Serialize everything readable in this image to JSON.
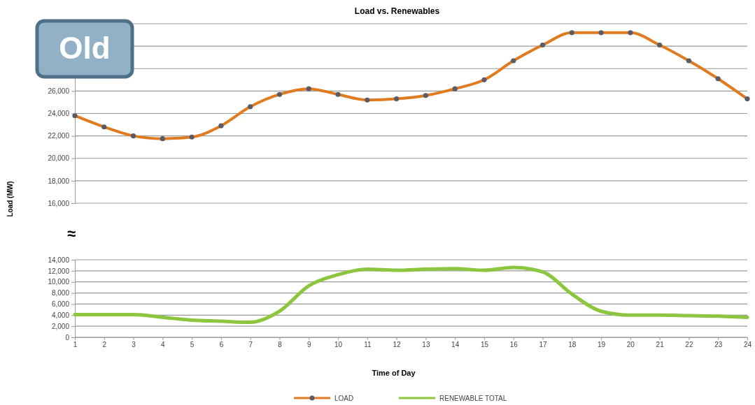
{
  "chart_data": [
    {
      "type": "line",
      "title": "Load vs. Renewables",
      "ylabel": "Load (MW)",
      "annotations": [
        "Old"
      ],
      "x": [
        1,
        2,
        3,
        4,
        5,
        6,
        7,
        8,
        9,
        10,
        11,
        12,
        13,
        14,
        15,
        16,
        17,
        18,
        19,
        20,
        21,
        22,
        23,
        24
      ],
      "xlim": [
        1,
        24
      ],
      "ylim": [
        16000,
        32000
      ],
      "yticks": [
        {
          "value": 16000,
          "label": "16,000"
        },
        {
          "value": 18000,
          "label": "18,000"
        },
        {
          "value": 20000,
          "label": "20,000"
        },
        {
          "value": 22000,
          "label": "22,000"
        },
        {
          "value": 24000,
          "label": "24,000"
        },
        {
          "value": 26000,
          "label": "26,000"
        },
        {
          "value": 28000,
          "label": null
        },
        {
          "value": 30000,
          "label": null
        },
        {
          "value": 32000,
          "label": null
        }
      ],
      "tick_labels": "y",
      "grid": "y",
      "marker": "circle",
      "legend": "bottom",
      "series": [
        {
          "name": "LOAD",
          "color": "#e07b20",
          "values": [
            23800,
            22800,
            22000,
            21750,
            21900,
            22900,
            24600,
            25700,
            26200,
            25700,
            25200,
            25300,
            25600,
            26200,
            27000,
            28700,
            30100,
            31200,
            31200,
            31200,
            30100,
            28700,
            27100,
            25300
          ]
        }
      ]
    },
    {
      "type": "line",
      "xlabel": "Time of Day",
      "annotations": [
        "≈"
      ],
      "x": [
        1,
        2,
        3,
        4,
        5,
        6,
        7,
        8,
        9,
        10,
        11,
        12,
        13,
        14,
        15,
        16,
        17,
        18,
        19,
        20,
        21,
        22,
        23,
        24
      ],
      "xlim": [
        1,
        24
      ],
      "xticks": [
        1,
        2,
        3,
        4,
        5,
        6,
        7,
        8,
        9,
        10,
        11,
        12,
        13,
        14,
        15,
        16,
        17,
        18,
        19,
        20,
        21,
        22,
        23,
        24
      ],
      "ylim": [
        0,
        14000
      ],
      "yticks": [
        0,
        {
          "value": 2000,
          "label": "2,000"
        },
        {
          "value": 4000,
          "label": "4,000"
        },
        {
          "value": 6000,
          "label": "6,000"
        },
        {
          "value": 8000,
          "label": "8,000"
        },
        {
          "value": 10000,
          "label": "10,000"
        },
        {
          "value": 12000,
          "label": "12,000"
        },
        {
          "value": 14000,
          "label": "14,000"
        }
      ],
      "grid": "y",
      "marker": "none",
      "legend": "bottom",
      "series": [
        {
          "name": "RENEWABLE TOTAL",
          "color": "#8cc63f",
          "values": [
            4100,
            4100,
            4100,
            3600,
            3100,
            2900,
            2700,
            4700,
            9300,
            11300,
            12300,
            12100,
            12300,
            12400,
            12100,
            12600,
            11800,
            7800,
            4700,
            4000,
            4000,
            3900,
            3800,
            3600
          ]
        }
      ]
    }
  ]
}
